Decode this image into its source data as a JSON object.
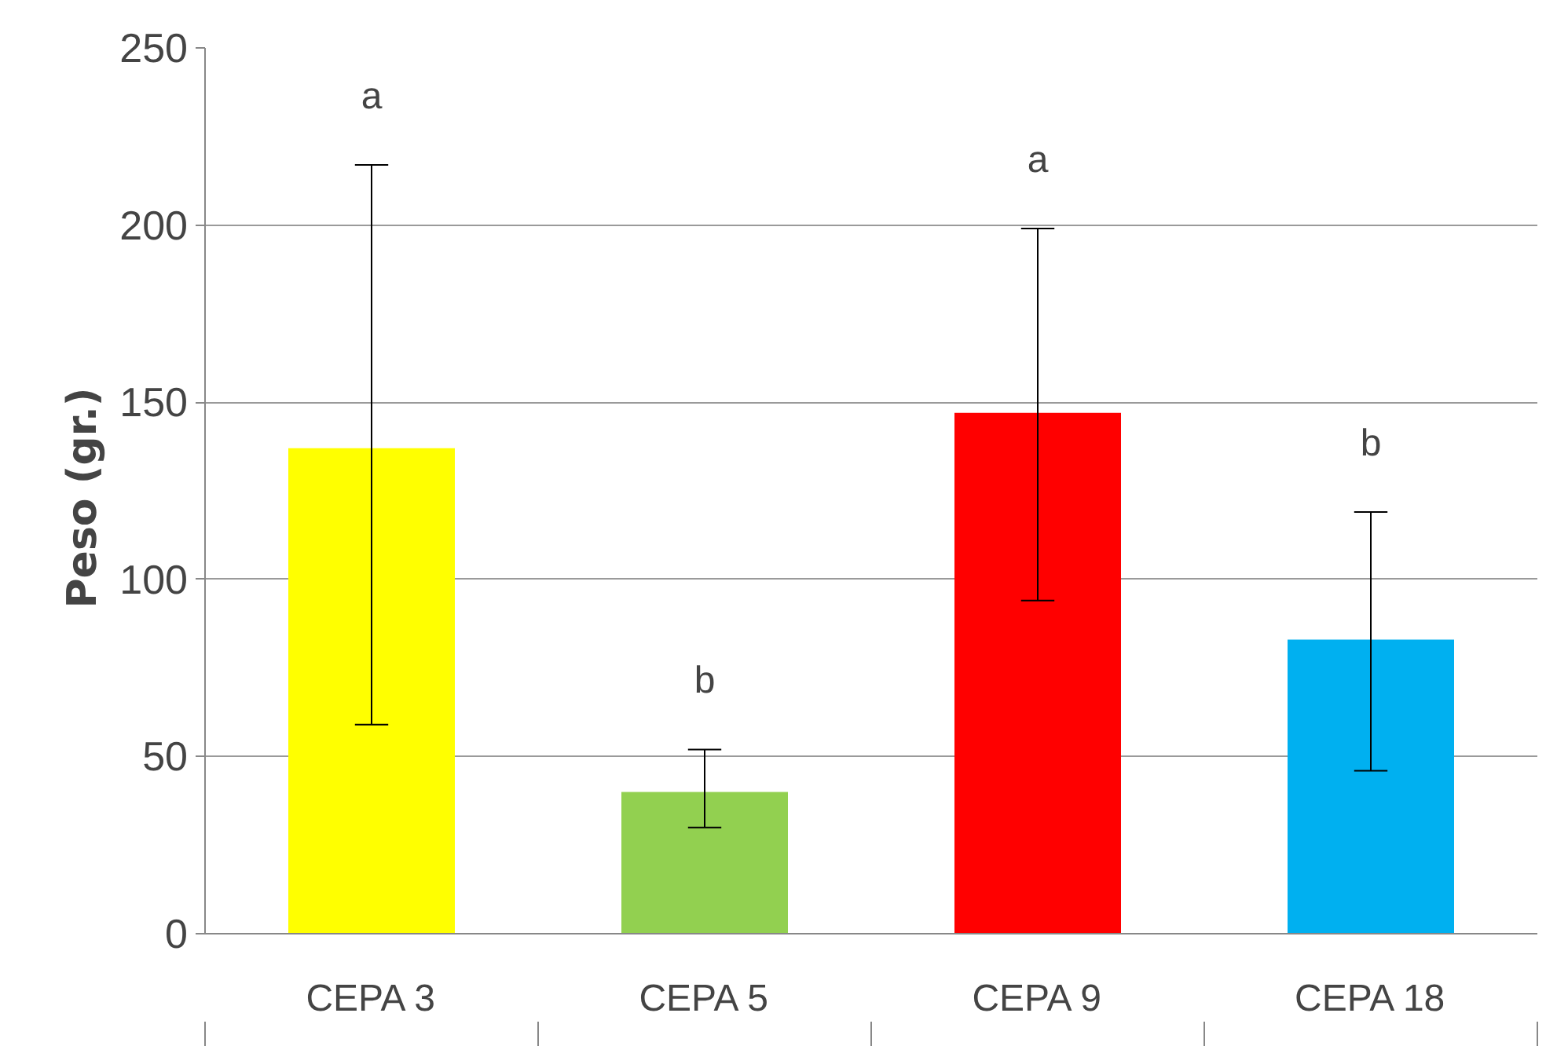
{
  "chart_data": {
    "type": "bar",
    "ylabel": "Peso  (gr.)",
    "categories": [
      "CEPA 3",
      "CEPA 5",
      "CEPA 9",
      "CEPA 18"
    ],
    "values": [
      137,
      40,
      147,
      83
    ],
    "colors": [
      "#ffff00",
      "#92d050",
      "#ff0000",
      "#00b0f0"
    ],
    "errors": [
      [
        59,
        217
      ],
      [
        30,
        52
      ],
      [
        94,
        199
      ],
      [
        46,
        119
      ]
    ],
    "ylim": [
      0,
      250
    ],
    "yticks": [
      0,
      50,
      100,
      150,
      200,
      250
    ],
    "grid": "y",
    "annotations": [
      "a",
      "b",
      "a",
      "b"
    ]
  }
}
